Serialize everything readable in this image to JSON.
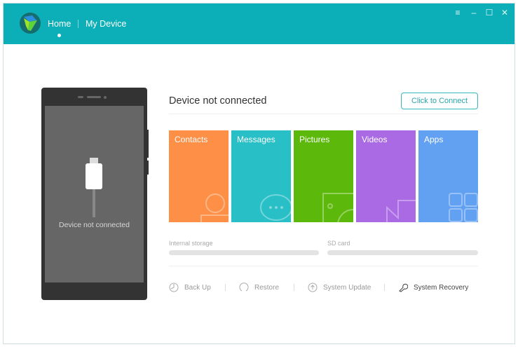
{
  "header": {
    "nav": [
      "Home",
      "My Device"
    ],
    "active": "Home",
    "controls": [
      "menu-icon",
      "minimize-icon",
      "maximize-icon",
      "close-icon"
    ],
    "color": "#0cafb7"
  },
  "phone": {
    "status": "Device not connected"
  },
  "main": {
    "title": "Device not connected",
    "connect_label": "Click to Connect",
    "tiles": [
      {
        "label": "Contacts",
        "color": "#fd8f46",
        "icon": "person-icon"
      },
      {
        "label": "Messages",
        "color": "#29bfc6",
        "icon": "chat-icon"
      },
      {
        "label": "Pictures",
        "color": "#5cb80a",
        "icon": "picture-icon"
      },
      {
        "label": "Videos",
        "color": "#a96ae3",
        "icon": "video-icon"
      },
      {
        "label": "Apps",
        "color": "#62a1f2",
        "icon": "apps-icon"
      }
    ],
    "storage": [
      {
        "label": "Internal storage",
        "percent": 0
      },
      {
        "label": "SD card",
        "percent": 0
      }
    ],
    "actions": [
      {
        "label": "Back Up",
        "icon": "clock-icon"
      },
      {
        "label": "Restore",
        "icon": "restore-icon"
      },
      {
        "label": "System Update",
        "icon": "update-icon"
      },
      {
        "label": "System Recovery",
        "icon": "wrench-icon"
      }
    ]
  }
}
